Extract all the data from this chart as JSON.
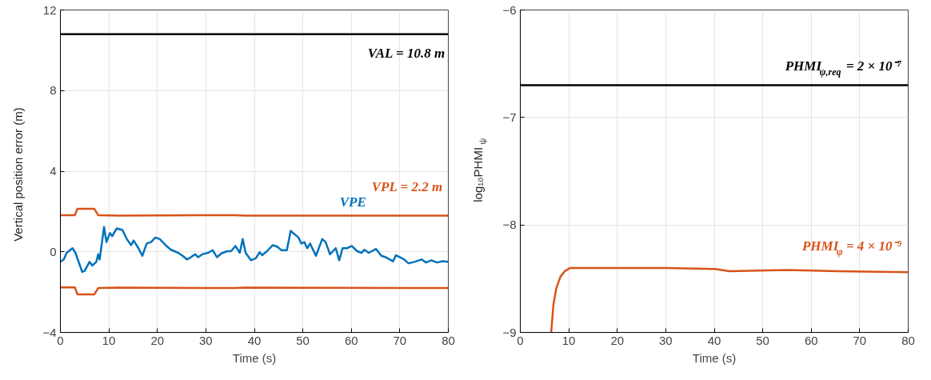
{
  "chart_data": [
    {
      "type": "line",
      "xlabel": "Time (s)",
      "ylabel": "Vertical position error (m)",
      "xlim": [
        0,
        80
      ],
      "ylim": [
        -4,
        12
      ],
      "xticks": [
        0,
        10,
        20,
        30,
        40,
        50,
        60,
        70,
        80
      ],
      "yticks": [
        -4,
        0,
        4,
        8,
        12
      ],
      "grid": true,
      "marker": "none",
      "line_style": "solid",
      "ref_lines": [
        {
          "axis": "y",
          "value": 10.8,
          "label": "VAL = 10.8 m",
          "color": "#000000"
        }
      ],
      "series": [
        {
          "name": "VPE",
          "color": "#0072bd",
          "x": [
            0,
            0.7,
            1.3,
            2.5,
            3.1,
            4.5,
            5.0,
            6.0,
            6.6,
            7.4,
            7.8,
            8.1,
            9.0,
            9.5,
            10.2,
            10.7,
            11.6,
            12.8,
            13.7,
            14.6,
            15.1,
            16.1,
            16.9,
            17.8,
            18.7,
            19.6,
            20.5,
            21.7,
            22.8,
            24.3,
            25.2,
            26.1,
            26.9,
            27.8,
            28.4,
            29.3,
            30.5,
            31.4,
            32.3,
            33.2,
            34.4,
            35.2,
            36.1,
            37.0,
            37.6,
            38.2,
            39.3,
            40.3,
            41.1,
            41.6,
            42.6,
            43.8,
            44.7,
            45.6,
            46.7,
            47.5,
            48.2,
            49.1,
            49.7,
            50.3,
            50.9,
            51.5,
            52.7,
            54.0,
            54.7,
            55.6,
            56.2,
            56.8,
            57.5,
            58.2,
            59.2,
            60.1,
            61.2,
            62.1,
            62.7,
            63.6,
            65.1,
            66.2,
            67.1,
            68.6,
            69.2,
            70.7,
            71.8,
            73.0,
            74.5,
            75.4,
            76.5,
            77.7,
            78.8,
            80
          ],
          "values": [
            -0.5,
            -0.38,
            -0.05,
            0.18,
            -0.05,
            -1.0,
            -0.95,
            -0.5,
            -0.68,
            -0.5,
            -0.12,
            -0.38,
            1.23,
            0.48,
            0.93,
            0.78,
            1.16,
            1.08,
            0.63,
            0.33,
            0.56,
            0.18,
            -0.2,
            0.41,
            0.48,
            0.71,
            0.63,
            0.33,
            0.1,
            -0.05,
            -0.2,
            -0.38,
            -0.27,
            -0.12,
            -0.27,
            -0.12,
            -0.05,
            0.08,
            -0.27,
            -0.08,
            0.03,
            0.03,
            0.29,
            -0.05,
            0.63,
            -0.05,
            -0.42,
            -0.32,
            -0.02,
            -0.17,
            0.03,
            0.33,
            0.26,
            0.08,
            0.08,
            1.04,
            0.89,
            0.71,
            0.41,
            0.48,
            0.18,
            0.41,
            -0.2,
            0.63,
            0.48,
            -0.12,
            0.03,
            0.18,
            -0.42,
            0.18,
            0.18,
            0.29,
            0.03,
            -0.05,
            0.1,
            -0.05,
            0.14,
            -0.2,
            -0.27,
            -0.47,
            -0.17,
            -0.35,
            -0.57,
            -0.5,
            -0.38,
            -0.53,
            -0.42,
            -0.53,
            -0.47,
            -0.5
          ]
        },
        {
          "name": "VPL = 2.2 m",
          "color": "#d95319",
          "x": [
            0,
            3.0,
            3.5,
            7.0,
            7.8,
            12,
            36,
            38,
            80
          ],
          "values": [
            1.82,
            1.82,
            2.13,
            2.13,
            1.82,
            1.8,
            1.82,
            1.8,
            1.8
          ]
        },
        {
          "color": "#d95319",
          "x": [
            0,
            3.0,
            3.5,
            7.0,
            7.8,
            12,
            36,
            38,
            80
          ],
          "values": [
            -1.77,
            -1.77,
            -2.11,
            -2.11,
            -1.8,
            -1.78,
            -1.8,
            -1.78,
            -1.8
          ]
        }
      ]
    },
    {
      "type": "line",
      "xlabel": "Time (s)",
      "ylabel": "log₁₀PHMI$_{ψ}$",
      "xlim": [
        0,
        80
      ],
      "ylim": [
        -9,
        -6
      ],
      "xticks": [
        0,
        10,
        20,
        30,
        40,
        50,
        60,
        70,
        80
      ],
      "yticks": [
        -9,
        -8,
        -7,
        -6
      ],
      "grid": true,
      "marker": "none",
      "line_style": "solid",
      "ref_lines": [
        {
          "axis": "y",
          "value": -6.699,
          "color": "#000000"
        }
      ],
      "annotations": [
        "PHMI$_{ψ,req}$ = 2 × 10⁻⁷"
      ],
      "series": [
        {
          "name": "PHMI$_{ψ}$ = 4 × 10⁻⁹",
          "color": "#d95319",
          "x": [
            6.37,
            6.84,
            7.42,
            8.3,
            9.18,
            10.3,
            20,
            30,
            40.2,
            43.1,
            55,
            65.3,
            80
          ],
          "values": [
            -9,
            -8.74,
            -8.59,
            -8.48,
            -8.43,
            -8.4,
            -8.4,
            -8.4,
            -8.41,
            -8.43,
            -8.42,
            -8.43,
            -8.44
          ]
        }
      ]
    }
  ]
}
